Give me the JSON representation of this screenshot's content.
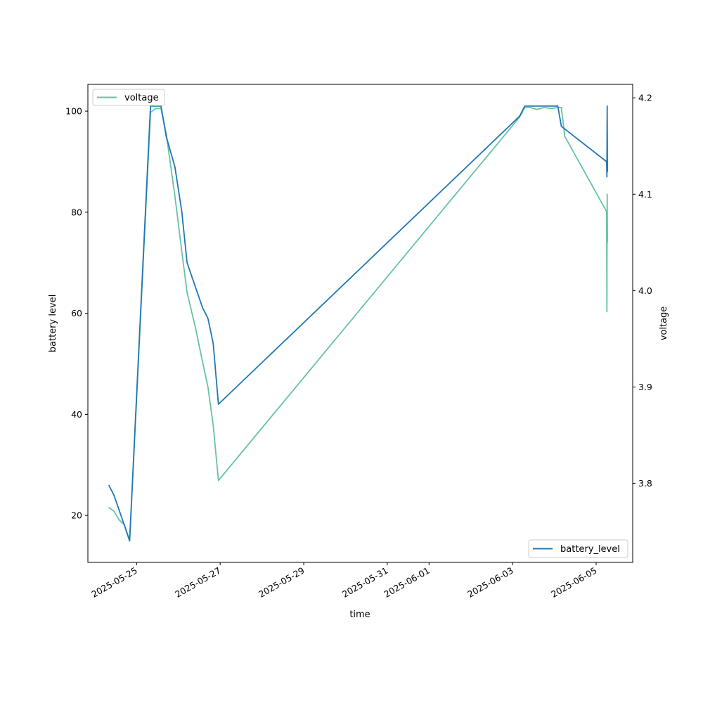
{
  "chart_data": {
    "type": "line",
    "xlabel": "time",
    "ylabel": "battery level",
    "y2label": "voltage",
    "xlim": [
      "2025-05-23T20:00",
      "2025-06-05T21:00"
    ],
    "ylim": [
      10.7,
      105.3
    ],
    "y2lim": [
      3.718,
      4.214
    ],
    "x_ticks": [
      "2025-05-25",
      "2025-05-27",
      "2025-05-29",
      "2025-05-31",
      "2025-06-01",
      "2025-06-03",
      "2025-06-05"
    ],
    "y_ticks": [
      20,
      40,
      60,
      80,
      100
    ],
    "y2_ticks": [
      "3.8",
      "3.9",
      "4.0",
      "4.1",
      "4.2"
    ],
    "grid": false,
    "series": [
      {
        "name": "battery_level",
        "axis": "left",
        "color": "#1f77b4",
        "legend_position": "lower right",
        "x": [
          "2025-05-24T08:00",
          "2025-05-24T11:00",
          "2025-05-24T14:00",
          "2025-05-24T17:00",
          "2025-05-24T20:00",
          "2025-05-25T08:00",
          "2025-05-25T11:00",
          "2025-05-25T14:00",
          "2025-05-25T17:00",
          "2025-05-25T22:00",
          "2025-05-26T02:00",
          "2025-05-26T05:00",
          "2025-05-26T10:00",
          "2025-05-26T14:00",
          "2025-05-26T17:00",
          "2025-05-26T20:00",
          "2025-05-26T23:00",
          "2025-06-03T04:00",
          "2025-06-03T07:00",
          "2025-06-03T10:00",
          "2025-06-03T20:00",
          "2025-06-04T02:00",
          "2025-06-04T04:00",
          "2025-06-05T06:00",
          "2025-06-05T06:10",
          "2025-06-05T06:20",
          "2025-06-05T06:30"
        ],
        "values": [
          26,
          24,
          21,
          18,
          15,
          101,
          101,
          101,
          95,
          89,
          80,
          70,
          65,
          61,
          59,
          54,
          42,
          99,
          101,
          101,
          101,
          101,
          97,
          90,
          87,
          101,
          88
        ]
      },
      {
        "name": "voltage",
        "axis": "right",
        "color": "#66c2a5",
        "legend_position": "upper left",
        "x": [
          "2025-05-24T08:00",
          "2025-05-24T11:00",
          "2025-05-24T14:00",
          "2025-05-24T17:00",
          "2025-05-24T20:00",
          "2025-05-25T08:00",
          "2025-05-25T11:00",
          "2025-05-25T14:00",
          "2025-05-25T17:00",
          "2025-05-25T22:00",
          "2025-05-26T02:00",
          "2025-05-26T05:00",
          "2025-05-26T10:00",
          "2025-05-26T14:00",
          "2025-05-26T17:00",
          "2025-05-26T20:00",
          "2025-05-26T23:00",
          "2025-06-03T04:00",
          "2025-06-03T07:00",
          "2025-06-03T10:00",
          "2025-06-03T14:00",
          "2025-06-03T18:00",
          "2025-06-03T22:00",
          "2025-06-04T02:00",
          "2025-06-04T04:00",
          "2025-06-04T06:00",
          "2025-06-05T06:00",
          "2025-06-05T06:10",
          "2025-06-05T06:20",
          "2025-06-05T06:30"
        ],
        "values": [
          3.775,
          3.771,
          3.762,
          3.757,
          3.74,
          4.185,
          4.189,
          4.189,
          4.163,
          4.098,
          4.04,
          3.998,
          3.96,
          3.925,
          3.9,
          3.86,
          3.803,
          4.18,
          4.19,
          4.19,
          4.188,
          4.19,
          4.189,
          4.19,
          4.19,
          4.16,
          4.082,
          3.978,
          4.1,
          4.05
        ]
      }
    ]
  }
}
